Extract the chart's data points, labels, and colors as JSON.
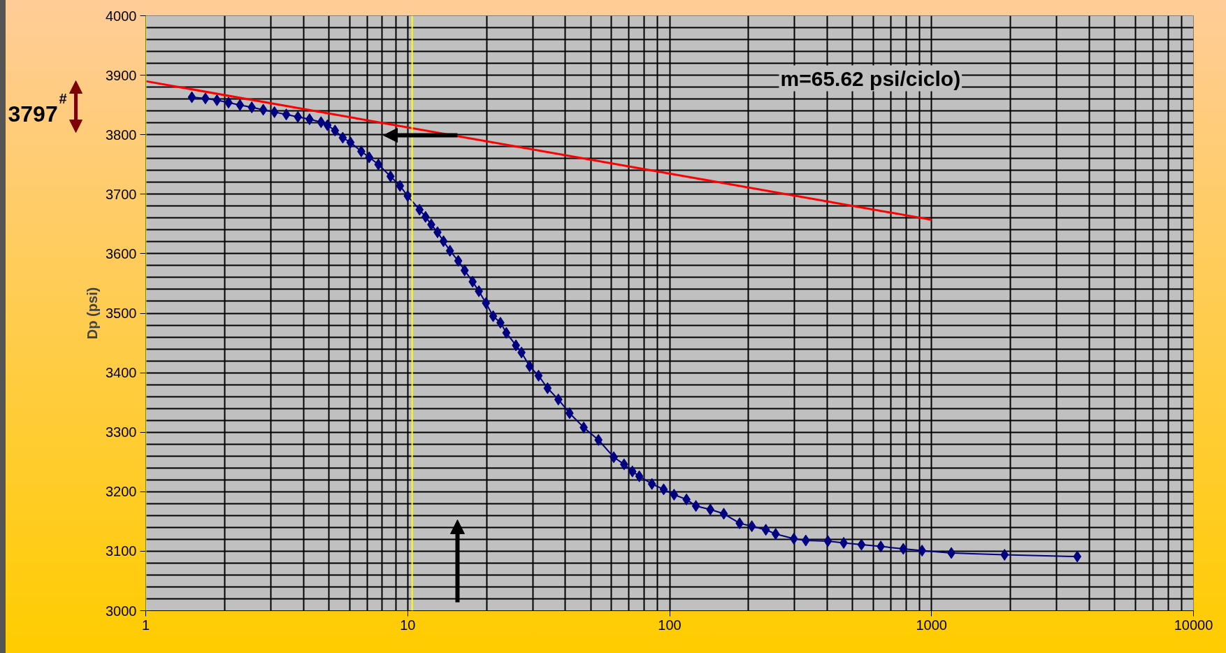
{
  "chart_data": {
    "type": "line",
    "ylabel": "Dp (psi)",
    "annotations": [
      "m=65.62 psi/ciclo)",
      "3797$^{#}$"
    ],
    "series": [
      {
        "color": "#000080",
        "marker": "diamond",
        "x": [
          1.5,
          1.69,
          1.87,
          2.07,
          2.29,
          2.54,
          2.81,
          3.1,
          3.44,
          3.81,
          4.22,
          4.67,
          4.94,
          5.28,
          5.65,
          6.05,
          6.65,
          7.13,
          7.73,
          8.6,
          9.35,
          10.0,
          11.1,
          11.7,
          12.3,
          13.0,
          13.7,
          14.5,
          15.6,
          16.5,
          17.7,
          18.7,
          19.9,
          21.2,
          22.6,
          23.8,
          25.9,
          27.2,
          29.2,
          31.6,
          34.2,
          37.6,
          41.5,
          47.0,
          53.5,
          61.2,
          67.0,
          72.1,
          76.6,
          85.6,
          94.9,
          104,
          116,
          126,
          143,
          161,
          185,
          206,
          233,
          254,
          298,
          331,
          402,
          462,
          540,
          640,
          780,
          920,
          1190,
          1900,
          3600
        ],
        "values": [
          3863,
          3861,
          3858,
          3854,
          3850,
          3846,
          3842,
          3838,
          3834,
          3830,
          3826,
          3821,
          3816,
          3807,
          3795,
          3787,
          3772,
          3762,
          3750,
          3730,
          3714,
          3697,
          3674,
          3662,
          3649,
          3636,
          3621,
          3605,
          3588,
          3572,
          3553,
          3537,
          3517,
          3495,
          3484,
          3467,
          3446,
          3434,
          3411,
          3395,
          3374,
          3355,
          3332,
          3308,
          3287,
          3258,
          3246,
          3234,
          3226,
          3213,
          3204,
          3195,
          3187,
          3176,
          3170,
          3163,
          3147,
          3142,
          3136,
          3129,
          3121,
          3118,
          3117,
          3114,
          3111,
          3108,
          3104,
          3101,
          3097,
          3094,
          3091
        ]
      },
      {
        "type": "line",
        "color": "#ff0000",
        "marker": "none",
        "x": [
          1,
          1000
        ],
        "values": [
          3890,
          3657
        ]
      }
    ],
    "xlim": [
      1,
      10000
    ],
    "xticks": [
      1,
      10,
      100,
      1000,
      10000
    ],
    "ylim": [
      3000,
      4000
    ],
    "yticks": [
      3000,
      3100,
      3200,
      3300,
      3400,
      3500,
      3600,
      3700,
      3800,
      3900,
      4000
    ],
    "log": "x",
    "grid": true,
    "legend": false,
    "ref_lines": [
      {
        "axis": "x",
        "value": 1,
        "color": "#ffff00"
      },
      {
        "axis": "x",
        "value": 10.4,
        "color": "#ffff00"
      }
    ]
  }
}
